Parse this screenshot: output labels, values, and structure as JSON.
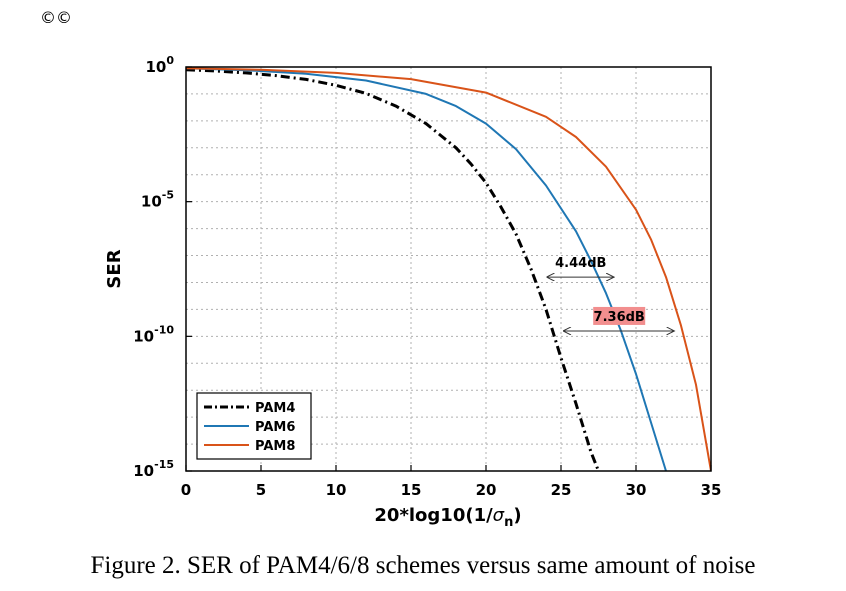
{
  "corner_mark": "©©",
  "caption": "Figure 2. SER of PAM4/6/8 schemes versus same amount of noise",
  "colors": {
    "pam4": "#000000",
    "pam6": "#1f77b4",
    "pam8": "#d95319",
    "highlight": "#f28e8e",
    "grid": "#b0b0b0"
  },
  "chart_data": {
    "type": "line",
    "title": "",
    "xlabel": "20*log10(1/σn)",
    "xlabel_main": "20*log10(1/",
    "xlabel_sym": "σ",
    "xlabel_sub": "n",
    "xlabel_end": ")",
    "ylabel": "SER",
    "xlim": [
      0,
      35
    ],
    "ylim_log10": [
      -15,
      0
    ],
    "y_scale": "log",
    "grid": true,
    "x_ticks": [
      0,
      5,
      10,
      15,
      20,
      25,
      30,
      35
    ],
    "x_tick_labels": [
      "0",
      "5",
      "10",
      "15",
      "20",
      "25",
      "30",
      "35"
    ],
    "y_ticks": [
      {
        "base": "10",
        "exp": "0",
        "log10": 0
      },
      {
        "base": "10",
        "exp": "-5",
        "log10": -5
      },
      {
        "base": "10",
        "exp": "-10",
        "log10": -10
      },
      {
        "base": "10",
        "exp": "-15",
        "log10": -15
      }
    ],
    "legend": {
      "position": "bottom-left"
    },
    "series": [
      {
        "name": "PAM4",
        "style": "dashdot",
        "color": "#000000",
        "x": [
          0,
          2,
          4,
          6,
          8,
          10,
          12,
          14,
          16,
          18,
          19,
          20,
          21,
          22,
          23,
          24,
          25,
          26,
          27,
          27.5
        ],
        "log10_y": [
          -0.1,
          -0.15,
          -0.22,
          -0.32,
          -0.46,
          -0.68,
          -0.98,
          -1.45,
          -2.1,
          -3.0,
          -3.6,
          -4.3,
          -5.2,
          -6.2,
          -7.5,
          -9.0,
          -10.8,
          -12.5,
          -14.3,
          -15
        ]
      },
      {
        "name": "PAM6",
        "style": "solid",
        "color": "#1f77b4",
        "x": [
          0,
          4,
          8,
          12,
          16,
          18,
          20,
          22,
          24,
          26,
          27,
          28,
          29,
          30,
          31,
          32
        ],
        "log10_y": [
          -0.05,
          -0.12,
          -0.25,
          -0.5,
          -1.0,
          -1.45,
          -2.1,
          -3.05,
          -4.4,
          -6.1,
          -7.2,
          -8.4,
          -9.8,
          -11.4,
          -13.2,
          -15
        ]
      },
      {
        "name": "PAM8",
        "style": "solid",
        "color": "#d95319",
        "x": [
          0,
          5,
          10,
          15,
          20,
          24,
          26,
          28,
          30,
          31,
          32,
          33,
          34,
          35
        ],
        "log10_y": [
          -0.05,
          -0.1,
          -0.22,
          -0.45,
          -0.95,
          -1.85,
          -2.6,
          -3.7,
          -5.3,
          -6.4,
          -7.8,
          -9.6,
          -11.8,
          -15
        ]
      }
    ],
    "annotations": [
      {
        "text": "4.44dB",
        "x_from": 24.1,
        "x_to": 28.54,
        "log10_y": -7.8,
        "highlight": false
      },
      {
        "text": "7.36dB",
        "x_from": 25.2,
        "x_to": 32.56,
        "log10_y": -9.8,
        "highlight": true
      }
    ]
  }
}
